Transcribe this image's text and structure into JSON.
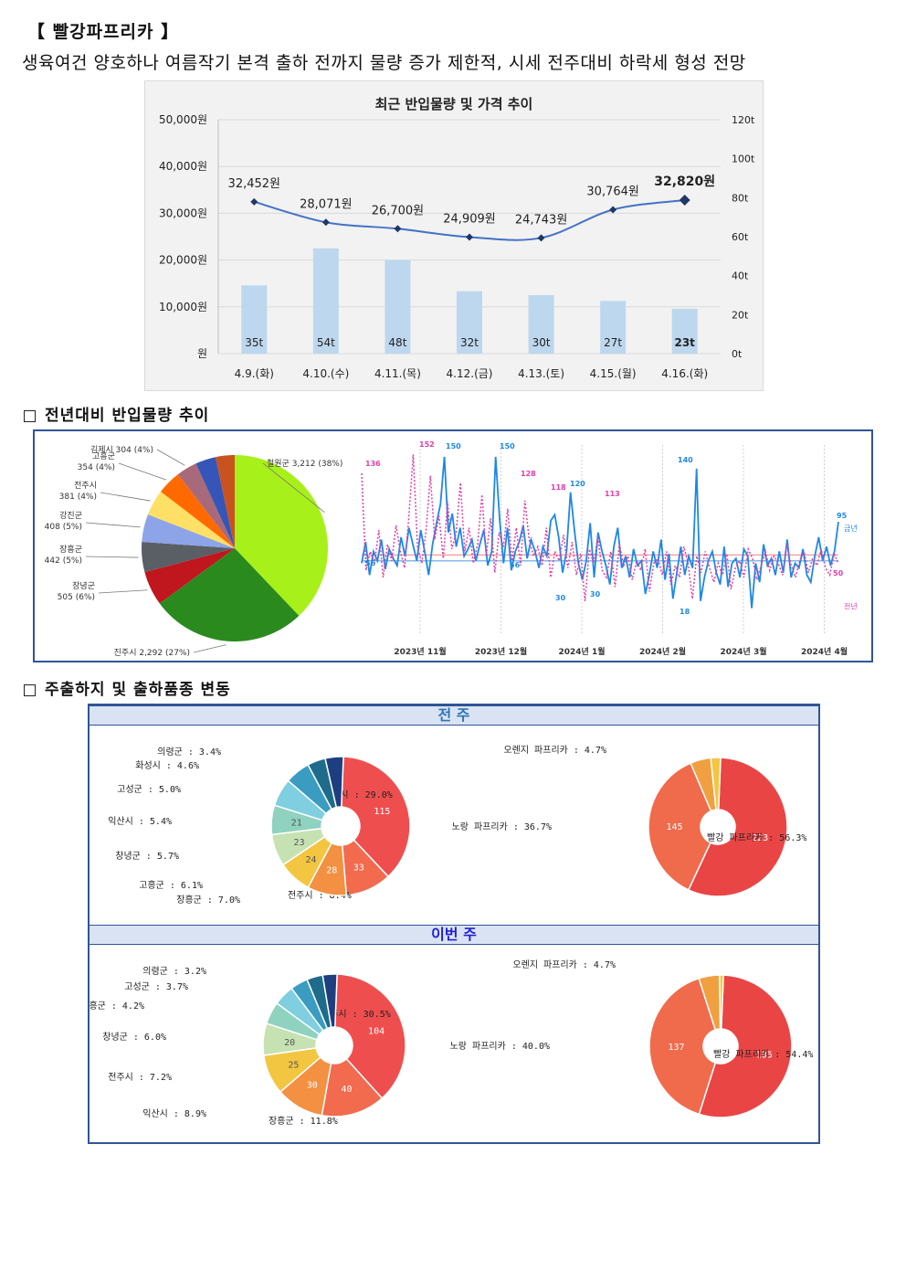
{
  "header": {
    "title": "【 빨강파프리카 】",
    "summary": "생육여건 양호하나 여름작기 본격 출하 전까지 물량 증가 제한적, 시세 전주대비 하락세 형성 전망"
  },
  "sections": {
    "yoy": "전년대비 반입물량 추이",
    "origin": "주출하지 및 출하품종 변동"
  },
  "chart_data": [
    {
      "type": "bar+line",
      "title": "최근 반입물량 및 가격 추이",
      "categories": [
        "4.9.(화)",
        "4.10.(수)",
        "4.11.(목)",
        "4.12.(금)",
        "4.13.(토)",
        "4.15.(월)",
        "4.16.(화)"
      ],
      "series": [
        {
          "axis": "left",
          "kind": "line",
          "values": [
            32452,
            28071,
            26700,
            24909,
            24743,
            30764,
            32820
          ],
          "labels": [
            "32,452원",
            "28,071원",
            "26,700원",
            "24,909원",
            "24,743원",
            "30,764원",
            "32,820원"
          ]
        },
        {
          "axis": "right",
          "kind": "bar",
          "values": [
            35,
            54,
            48,
            32,
            30,
            27,
            23
          ],
          "labels": [
            "35t",
            "54t",
            "48t",
            "32t",
            "30t",
            "27t",
            "23t"
          ]
        }
      ],
      "left_ticks": [
        "50,000원",
        "40,000원",
        "30,000원",
        "20,000원",
        "10,000원",
        "원"
      ],
      "right_ticks": [
        "120t",
        "100t",
        "80t",
        "60t",
        "40t",
        "20t",
        "0t"
      ],
      "ylim_left": [
        0,
        50000
      ],
      "ylim_right": [
        0,
        120
      ],
      "grid": true,
      "colors": {
        "bar": "#bdd7ee",
        "line": "#4472c4",
        "marker": "#1f3864"
      }
    },
    {
      "type": "pie",
      "slices": [
        {
          "label": "철원군 3,212 (38%)",
          "value": 3212,
          "color": "#a8f01a"
        },
        {
          "label": "진주시 2,292 (27%)",
          "value": 2292,
          "color": "#2a8a1e"
        },
        {
          "label": "장녕군 505 (6%)",
          "value": 505,
          "color": "#c0161e"
        },
        {
          "label": "장흥군 442 (5%)",
          "value": 442,
          "color": "#5a5f66"
        },
        {
          "label": "강진군 408 (5%)",
          "value": 408,
          "color": "#8da4e8"
        },
        {
          "label": "전주시 381 (4%)",
          "value": 381,
          "color": "#ffe066"
        },
        {
          "label": "고흥군 354 (4%)",
          "value": 354,
          "color": "#ff6a00"
        },
        {
          "label": "김제시 304 (4%)",
          "value": 304,
          "color": "#a86a7a"
        },
        {
          "label": "",
          "value": 300,
          "color": "#3555b8"
        },
        {
          "label": "",
          "value": 280,
          "color": "#c8531e"
        }
      ]
    },
    {
      "type": "line",
      "x_labels": [
        "2023년 11월",
        "2023년 12월",
        "2024년 1월",
        "2024년 2월",
        "2024년 3월",
        "2024년 4월"
      ],
      "series": [
        {
          "name": "금년",
          "color": "#1e88e5",
          "style": "solid",
          "values": [
            60,
            78,
            50,
            70,
            62,
            80,
            55,
            72,
            64,
            58,
            82,
            66,
            90,
            76,
            62,
            88,
            70,
            50,
            76,
            94,
            110,
            150,
            86,
            102,
            74,
            90,
            66,
            72,
            80,
            62,
            76,
            88,
            58,
            70,
            150,
            98,
            60,
            90,
            54,
            70,
            78,
            92,
            64,
            80,
            70,
            56,
            74,
            66,
            96,
            101,
            82,
            52,
            70,
            120,
            88,
            60,
            46,
            62,
            94,
            48,
            86,
            70,
            58,
            42,
            74,
            90,
            56,
            66,
            48,
            72,
            58,
            62,
            34,
            50,
            70,
            56,
            80,
            46,
            68,
            30,
            52,
            74,
            50,
            66,
            56,
            140,
            28,
            48,
            62,
            70,
            52,
            42,
            74,
            40,
            60,
            64,
            48,
            72,
            66,
            22,
            60,
            44,
            76,
            58,
            64,
            50,
            70,
            52,
            80,
            48,
            60,
            56,
            72,
            50,
            44,
            66,
            82,
            62,
            74,
            58,
            70,
            95
          ]
        },
        {
          "name": "전년",
          "color": "#e23fa6",
          "style": "dotted",
          "values": [
            136,
            54,
            70,
            60,
            88,
            48,
            76,
            62,
            92,
            70,
            56,
            100,
            152,
            74,
            60,
            88,
            134,
            80,
            100,
            64,
            112,
            72,
            86,
            128,
            70,
            90,
            60,
            76,
            118,
            66,
            98,
            52,
            86,
            74,
            106,
            62,
            90,
            58,
            113,
            80,
            66,
            74,
            58,
            90,
            48,
            70,
            62,
            84,
            56,
            78,
            50,
            68,
            28,
            72,
            60,
            82,
            54,
            48,
            70,
            40,
            76,
            58,
            66,
            46,
            62,
            54,
            72,
            36,
            60,
            64,
            50,
            70,
            42,
            58,
            48,
            74,
            60,
            30,
            66,
            52,
            70,
            56,
            44,
            60,
            50,
            68,
            38,
            56,
            62,
            48,
            72,
            64,
            46,
            58,
            70,
            54,
            66,
            60,
            50,
            76,
            58,
            48,
            62,
            70,
            52,
            64,
            58,
            72,
            56,
            50,
            68,
            60
          ]
        }
      ],
      "point_labels": [
        "136",
        "152",
        "150",
        "150",
        "128",
        "118",
        "120",
        "113",
        "140",
        "95",
        "56",
        "56",
        "30",
        "30",
        "18",
        "50"
      ]
    },
    {
      "type": "donut-pair",
      "panel": "전 주",
      "origin": [
        {
          "label": "진주시 : 29.0%",
          "value": 115,
          "color": "#ef4e4e"
        },
        {
          "label": "전주시 : 8.4%",
          "value": 33,
          "color": "#f26b4f"
        },
        {
          "label": "장흥군 : 7.0%",
          "value": 28,
          "color": "#f39041"
        },
        {
          "label": "고흥군 : 6.1%",
          "value": 24,
          "color": "#f3c641"
        },
        {
          "label": "창녕군 : 5.7%",
          "value": 23,
          "color": "#c6e2b3"
        },
        {
          "label": "익산시 : 5.4%",
          "value": 21,
          "color": "#8fd2bf"
        },
        {
          "label": "고성군 : 5.0%",
          "value": 20,
          "color": "#7fcfe0"
        },
        {
          "label": "화성시 : 4.6%",
          "value": 18,
          "color": "#3a9cc0"
        },
        {
          "label": "의령군 : 3.4%",
          "value": 13,
          "color": "#1f6b8c"
        },
        {
          "label": "",
          "value": 13,
          "color": "#1d3f80"
        }
      ],
      "variety": [
        {
          "label": "빨강 파프리카 : 56.3%",
          "value": 223,
          "color": "#ea4545"
        },
        {
          "label": "노랑 파프리카 : 36.7%",
          "value": 145,
          "color": "#f06b4c"
        },
        {
          "label": "오렌지 파프리카 : 4.7%",
          "value": 19,
          "color": "#f0a040"
        },
        {
          "label": "",
          "value": 9,
          "color": "#f3c641"
        }
      ]
    },
    {
      "type": "donut-pair",
      "panel": "이번 주",
      "origin": [
        {
          "label": "진주시 : 30.5%",
          "value": 104,
          "color": "#ef4e4e"
        },
        {
          "label": "장흥군 : 11.8%",
          "value": 40,
          "color": "#f26b4f"
        },
        {
          "label": "익산시 : 8.9%",
          "value": 30,
          "color": "#f39041"
        },
        {
          "label": "전주시 : 7.2%",
          "value": 25,
          "color": "#f3c641"
        },
        {
          "label": "창녕군 : 6.0%",
          "value": 20,
          "color": "#c6e2b3"
        },
        {
          "label": "고흥군 : 4.2%",
          "value": 14,
          "color": "#8fd2bf"
        },
        {
          "label": "고성군 : 3.7%",
          "value": 13,
          "color": "#7fcfe0"
        },
        {
          "label": "의령군 : 3.2%",
          "value": 11,
          "color": "#3a9cc0"
        },
        {
          "label": "",
          "value": 10,
          "color": "#1f6b8c"
        },
        {
          "label": "",
          "value": 9,
          "color": "#1d3f80"
        }
      ],
      "variety": [
        {
          "label": "빨강 파프리카 : 54.4%",
          "value": 185,
          "color": "#ea4545"
        },
        {
          "label": "노랑 파프리카 : 40.0%",
          "value": 137,
          "color": "#f06b4c"
        },
        {
          "label": "오렌지 파프리카 : 4.7%",
          "value": 16,
          "color": "#f0a040"
        },
        {
          "label": "",
          "value": 3,
          "color": "#f3c641"
        }
      ]
    }
  ]
}
